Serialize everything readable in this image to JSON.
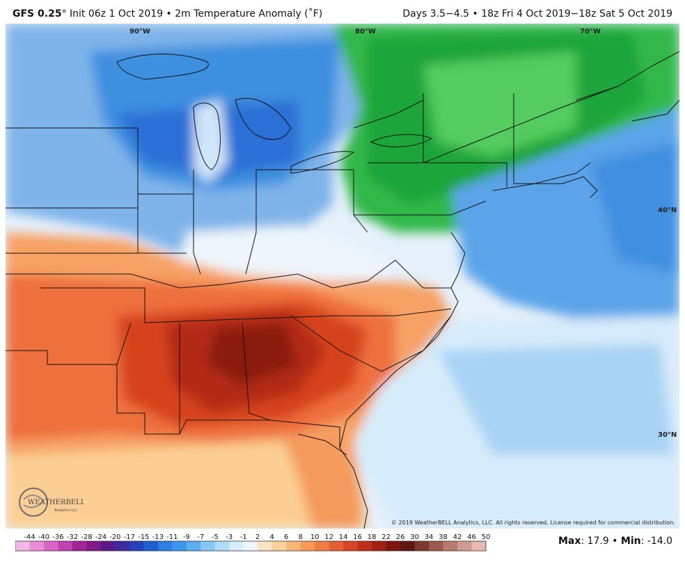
{
  "header": {
    "model": "GFS 0.25",
    "degree_mark": "°",
    "title_rest": " Init 06z 1 Oct 2019 • 2m Temperature Anomaly (˚F)",
    "valid": "Days 3.5−4.5 • 18z Fri 4 Oct 2019−18z Sat 5 Oct 2019"
  },
  "map": {
    "grid_labels": [
      "90°W",
      "80°W",
      "70°W",
      "40°N",
      "30°N"
    ],
    "copyright": "© 2019 WeatherBELL Analytics, LLC. All rights reserved. License required for commercial distribution.",
    "logo_text": "WEATHERBELL",
    "logo_subtext": "Analytics LLC"
  },
  "legend": {
    "values": [
      "-44",
      "-40",
      "-36",
      "-32",
      "-28",
      "-24",
      "-20",
      "-17",
      "-15",
      "-13",
      "-11",
      "-9",
      "-7",
      "-5",
      "-3",
      "-1",
      "2",
      "4",
      "6",
      "8",
      "10",
      "12",
      "14",
      "16",
      "18",
      "22",
      "26",
      "30",
      "34",
      "38",
      "42",
      "46",
      "50"
    ],
    "colors": [
      "#f2b8e6",
      "#e88ed6",
      "#d865c6",
      "#c23fb0",
      "#a02596",
      "#7f1a86",
      "#5b1a8c",
      "#3b2aa0",
      "#2540b8",
      "#1d5fd0",
      "#2d7de2",
      "#3d97ec",
      "#5cb0f2",
      "#86c8f6",
      "#b1dcf8",
      "#d9eefb",
      "#eef6fb",
      "#fbe4c2",
      "#fbd09a",
      "#f9b677",
      "#f59a5a",
      "#ef7c45",
      "#e55f33",
      "#d64527",
      "#bf301c",
      "#a02015",
      "#7d1510",
      "#5e1712",
      "#7a3a2e",
      "#9a5a4d",
      "#b87a6e",
      "#cf9a90",
      "#e6b9b0"
    ]
  },
  "stats": {
    "max_label": "Max",
    "max_value": "17.9",
    "min_label": "Min",
    "min_value": "-14.0",
    "sep": " • "
  }
}
